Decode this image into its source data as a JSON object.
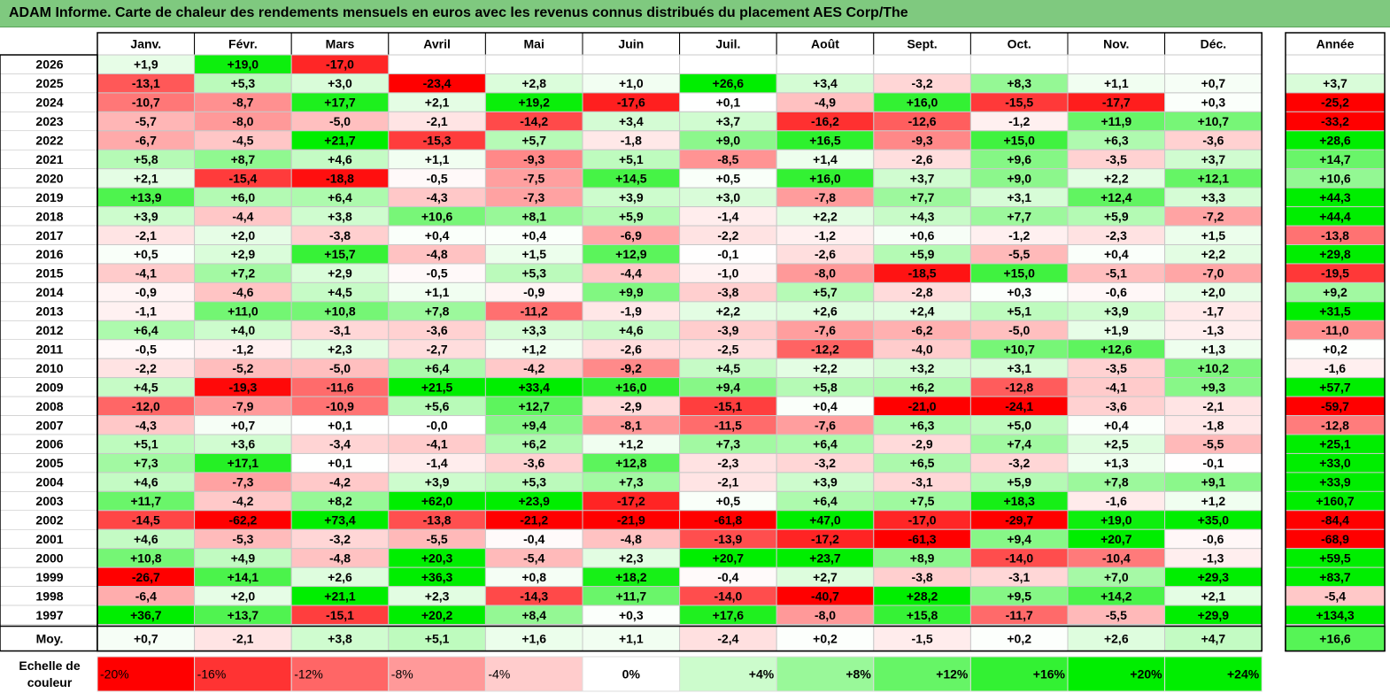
{
  "title": "ADAM Informe. Carte de chaleur des rendements mensuels en euros avec les revenus connus distribués du placement AES Corp/The",
  "chart_data": {
    "type": "heatmap",
    "months": [
      "Janv.",
      "Févr.",
      "Mars",
      "Avril",
      "Mai",
      "Juin",
      "Juil.",
      "Août",
      "Sept.",
      "Oct.",
      "Nov.",
      "Déc."
    ],
    "year_header": "Année",
    "rows": [
      {
        "year": "2026",
        "values": [
          "+1,9",
          "+19,0",
          "-17,0",
          "",
          "",
          "",
          "",
          "",
          "",
          "",
          "",
          ""
        ],
        "annual": ""
      },
      {
        "year": "2025",
        "values": [
          "-13,1",
          "+5,3",
          "+3,0",
          "-23,4",
          "+2,8",
          "+1,0",
          "+26,6",
          "+3,4",
          "-3,2",
          "+8,3",
          "+1,1",
          "+0,7"
        ],
        "annual": "+3,7"
      },
      {
        "year": "2024",
        "values": [
          "-10,7",
          "-8,7",
          "+17,7",
          "+2,1",
          "+19,2",
          "-17,6",
          "+0,1",
          "-4,9",
          "+16,0",
          "-15,5",
          "-17,7",
          "+0,3"
        ],
        "annual": "-25,2"
      },
      {
        "year": "2023",
        "values": [
          "-5,7",
          "-8,0",
          "-5,0",
          "-2,1",
          "-14,2",
          "+3,4",
          "+3,7",
          "-16,2",
          "-12,6",
          "-1,2",
          "+11,9",
          "+10,7"
        ],
        "annual": "-33,2"
      },
      {
        "year": "2022",
        "values": [
          "-6,7",
          "-4,5",
          "+21,7",
          "-15,3",
          "+5,7",
          "-1,8",
          "+9,0",
          "+16,5",
          "-9,3",
          "+15,0",
          "+6,3",
          "-3,6"
        ],
        "annual": "+28,6"
      },
      {
        "year": "2021",
        "values": [
          "+5,8",
          "+8,7",
          "+4,6",
          "+1,1",
          "-9,3",
          "+5,1",
          "-8,5",
          "+1,4",
          "-2,6",
          "+9,6",
          "-3,5",
          "+3,7"
        ],
        "annual": "+14,7"
      },
      {
        "year": "2020",
        "values": [
          "+2,1",
          "-15,4",
          "-18,8",
          "-0,5",
          "-7,5",
          "+14,5",
          "+0,5",
          "+16,0",
          "+3,7",
          "+9,0",
          "+2,2",
          "+12,1"
        ],
        "annual": "+10,6"
      },
      {
        "year": "2019",
        "values": [
          "+13,9",
          "+6,0",
          "+6,4",
          "-4,3",
          "-7,3",
          "+3,9",
          "+3,0",
          "-7,8",
          "+7,7",
          "+3,1",
          "+12,4",
          "+3,3"
        ],
        "annual": "+44,3"
      },
      {
        "year": "2018",
        "values": [
          "+3,9",
          "-4,4",
          "+3,8",
          "+10,6",
          "+8,1",
          "+5,9",
          "-1,4",
          "+2,2",
          "+4,3",
          "+7,7",
          "+5,9",
          "-7,2"
        ],
        "annual": "+44,4"
      },
      {
        "year": "2017",
        "values": [
          "-2,1",
          "+2,0",
          "-3,8",
          "+0,4",
          "+0,4",
          "-6,9",
          "-2,2",
          "-1,2",
          "+0,6",
          "-1,2",
          "-2,3",
          "+1,5"
        ],
        "annual": "-13,8"
      },
      {
        "year": "2016",
        "values": [
          "+0,5",
          "+2,9",
          "+15,7",
          "-4,8",
          "+1,5",
          "+12,9",
          "-0,1",
          "-2,6",
          "+5,9",
          "-5,5",
          "+0,4",
          "+2,2"
        ],
        "annual": "+29,8"
      },
      {
        "year": "2015",
        "values": [
          "-4,1",
          "+7,2",
          "+2,9",
          "-0,5",
          "+5,3",
          "-4,4",
          "-1,0",
          "-8,0",
          "-18,5",
          "+15,0",
          "-5,1",
          "-7,0"
        ],
        "annual": "-19,5"
      },
      {
        "year": "2014",
        "values": [
          "-0,9",
          "-4,6",
          "+4,5",
          "+1,1",
          "-0,9",
          "+9,9",
          "-3,8",
          "+5,7",
          "-2,8",
          "+0,3",
          "-0,6",
          "+2,0"
        ],
        "annual": "+9,2"
      },
      {
        "year": "2013",
        "values": [
          "-1,1",
          "+11,0",
          "+10,8",
          "+7,8",
          "-11,2",
          "-1,9",
          "+2,2",
          "+2,6",
          "+2,4",
          "+5,1",
          "+3,9",
          "-1,7"
        ],
        "annual": "+31,5"
      },
      {
        "year": "2012",
        "values": [
          "+6,4",
          "+4,0",
          "-3,1",
          "-3,6",
          "+3,3",
          "+4,6",
          "-3,9",
          "-7,6",
          "-6,2",
          "-5,0",
          "+1,9",
          "-1,3"
        ],
        "annual": "-11,0"
      },
      {
        "year": "2011",
        "values": [
          "-0,5",
          "-1,2",
          "+2,3",
          "-2,7",
          "+1,2",
          "-2,6",
          "-2,5",
          "-12,2",
          "-4,0",
          "+10,7",
          "+12,6",
          "+1,3"
        ],
        "annual": "+0,2"
      },
      {
        "year": "2010",
        "values": [
          "-2,2",
          "-5,2",
          "-5,0",
          "+6,4",
          "-4,2",
          "-9,2",
          "+4,5",
          "+2,2",
          "+3,2",
          "+3,1",
          "-3,5",
          "+10,2"
        ],
        "annual": "-1,6"
      },
      {
        "year": "2009",
        "values": [
          "+4,5",
          "-19,3",
          "-11,6",
          "+21,5",
          "+33,4",
          "+16,0",
          "+9,4",
          "+5,8",
          "+6,2",
          "-12,8",
          "-4,1",
          "+9,3"
        ],
        "annual": "+57,7"
      },
      {
        "year": "2008",
        "values": [
          "-12,0",
          "-7,9",
          "-10,9",
          "+5,6",
          "+12,7",
          "-2,9",
          "-15,1",
          "+0,4",
          "-21,0",
          "-24,1",
          "-3,6",
          "-2,1"
        ],
        "annual": "-59,7"
      },
      {
        "year": "2007",
        "values": [
          "-4,3",
          "+0,7",
          "+0,1",
          "-0,0",
          "+9,4",
          "-8,1",
          "-11,5",
          "-7,6",
          "+6,3",
          "+5,0",
          "+0,4",
          "-1,8"
        ],
        "annual": "-12,8"
      },
      {
        "year": "2006",
        "values": [
          "+5,1",
          "+3,6",
          "-3,4",
          "-4,1",
          "+6,2",
          "+1,2",
          "+7,3",
          "+6,4",
          "-2,9",
          "+7,4",
          "+2,5",
          "-5,5"
        ],
        "annual": "+25,1"
      },
      {
        "year": "2005",
        "values": [
          "+7,3",
          "+17,1",
          "+0,1",
          "-1,4",
          "-3,6",
          "+12,8",
          "-2,3",
          "-3,2",
          "+6,5",
          "-3,2",
          "+1,3",
          "-0,1"
        ],
        "annual": "+33,0"
      },
      {
        "year": "2004",
        "values": [
          "+4,6",
          "-7,3",
          "-4,2",
          "+3,9",
          "+5,3",
          "+7,3",
          "-2,1",
          "+3,9",
          "-3,1",
          "+5,9",
          "+7,8",
          "+9,1"
        ],
        "annual": "+33,9"
      },
      {
        "year": "2003",
        "values": [
          "+11,7",
          "-4,2",
          "+8,2",
          "+62,0",
          "+23,9",
          "-17,2",
          "+0,5",
          "+6,4",
          "+7,5",
          "+18,3",
          "-1,6",
          "+1,2"
        ],
        "annual": "+160,7"
      },
      {
        "year": "2002",
        "values": [
          "-14,5",
          "-62,2",
          "+73,4",
          "-13,8",
          "-21,2",
          "-21,9",
          "-61,8",
          "+47,0",
          "-17,0",
          "-29,7",
          "+19,0",
          "+35,0"
        ],
        "annual": "-84,4"
      },
      {
        "year": "2001",
        "values": [
          "+4,6",
          "-5,3",
          "-3,2",
          "-5,5",
          "-0,4",
          "-4,8",
          "-13,9",
          "-17,2",
          "-61,3",
          "+9,4",
          "+20,7",
          "-0,6"
        ],
        "annual": "-68,9"
      },
      {
        "year": "2000",
        "values": [
          "+10,8",
          "+4,9",
          "-4,8",
          "+20,3",
          "-5,4",
          "+2,3",
          "+20,7",
          "+23,7",
          "+8,9",
          "-14,0",
          "-10,4",
          "-1,3"
        ],
        "annual": "+59,5"
      },
      {
        "year": "1999",
        "values": [
          "-26,7",
          "+14,1",
          "+2,6",
          "+36,3",
          "+0,8",
          "+18,2",
          "-0,4",
          "+2,7",
          "-3,8",
          "-3,1",
          "+7,0",
          "+29,3"
        ],
        "annual": "+83,7"
      },
      {
        "year": "1998",
        "values": [
          "-6,4",
          "+2,0",
          "+21,1",
          "+2,3",
          "-14,3",
          "+11,7",
          "-14,0",
          "-40,7",
          "+28,2",
          "+9,5",
          "+14,2",
          "+2,1"
        ],
        "annual": "-5,4"
      },
      {
        "year": "1997",
        "values": [
          "+36,7",
          "+13,7",
          "-15,1",
          "+20,2",
          "+8,4",
          "+0,3",
          "+17,6",
          "-8,0",
          "+15,8",
          "-11,7",
          "-5,5",
          "+29,9"
        ],
        "annual": "+134,3"
      }
    ],
    "average": {
      "label": "Moy.",
      "values": [
        "+0,7",
        "-2,1",
        "+3,8",
        "+5,1",
        "+1,6",
        "+1,1",
        "-2,4",
        "+0,2",
        "-1,5",
        "+0,2",
        "+2,6",
        "+4,7"
      ],
      "annual": "+16,6"
    },
    "scale": {
      "label_line1": "Echelle de",
      "label_line2": "couleur",
      "steps": [
        "-20%",
        "-16%",
        "-12%",
        "-8%",
        "-4%",
        "0%",
        "+4%",
        "+8%",
        "+12%",
        "+16%",
        "+20%",
        "+24%"
      ]
    },
    "colors": {
      "negative_max": "#ff0000",
      "positive_max": "#00ee00",
      "neutral": "#ffffff",
      "title_bg": "#7fc97f"
    }
  }
}
